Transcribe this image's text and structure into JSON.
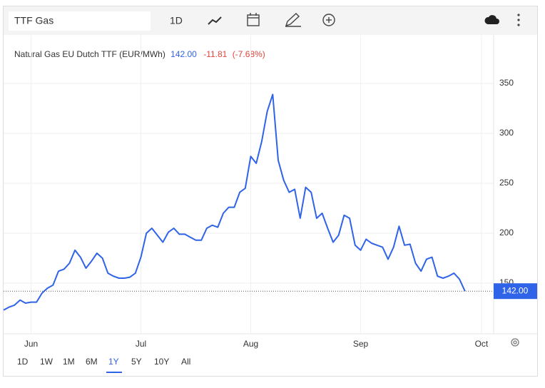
{
  "toolbar": {
    "search": "TTF Gas",
    "interval": "1D"
  },
  "quote": {
    "last": "142.00",
    "change": "-11.81",
    "change_pct": "(-7.68%)"
  },
  "ranges": [
    "1D",
    "1W",
    "1M",
    "6M",
    "1Y",
    "5Y",
    "10Y",
    "All"
  ],
  "selected_range": "1Y",
  "chart_data": {
    "type": "line",
    "categories": [
      null,
      null,
      null,
      null,
      null,
      "Jun",
      null,
      null,
      null,
      null,
      null,
      null,
      null,
      null,
      null,
      null,
      null,
      null,
      null,
      null,
      null,
      null,
      null,
      null,
      null,
      "Jul",
      null,
      null,
      null,
      null,
      null,
      null,
      null,
      null,
      null,
      null,
      null,
      null,
      null,
      null,
      null,
      null,
      null,
      null,
      null,
      "Aug",
      null,
      null,
      null,
      null,
      null,
      null,
      null,
      null,
      null,
      null,
      null,
      null,
      null,
      null,
      null,
      null,
      null,
      null,
      null,
      "Sep",
      null,
      null,
      null,
      null,
      null,
      null,
      null,
      null,
      null,
      null,
      null,
      null,
      null,
      null,
      null,
      null,
      null,
      null,
      null,
      null,
      null,
      "Oct"
    ],
    "series": [
      {
        "name": "Natural Gas EU Dutch TTF (EUR/MWh)",
        "color": "#2f63e8",
        "values": [
          123,
          126,
          128,
          133,
          130,
          131,
          131,
          140,
          145,
          148,
          162,
          164,
          170,
          183,
          176,
          165,
          172,
          180,
          175,
          160,
          157,
          155,
          155,
          156,
          160,
          176,
          200,
          205,
          198,
          191,
          201,
          205,
          199,
          199,
          196,
          193,
          193,
          205,
          208,
          206,
          220,
          226,
          226,
          241,
          245,
          277,
          270,
          292,
          322,
          339,
          273,
          253,
          241,
          244,
          215,
          246,
          241,
          215,
          220,
          205,
          191,
          198,
          218,
          215,
          188,
          183,
          194,
          190,
          188,
          186,
          174,
          186,
          207,
          188,
          189,
          170,
          162,
          174,
          176,
          157,
          155,
          157,
          160,
          154,
          142,
          null,
          null,
          null
        ]
      }
    ],
    "ylim": [
      100,
      400
    ],
    "yticks": [
      150,
      200,
      250,
      300,
      350
    ],
    "grid": true
  }
}
